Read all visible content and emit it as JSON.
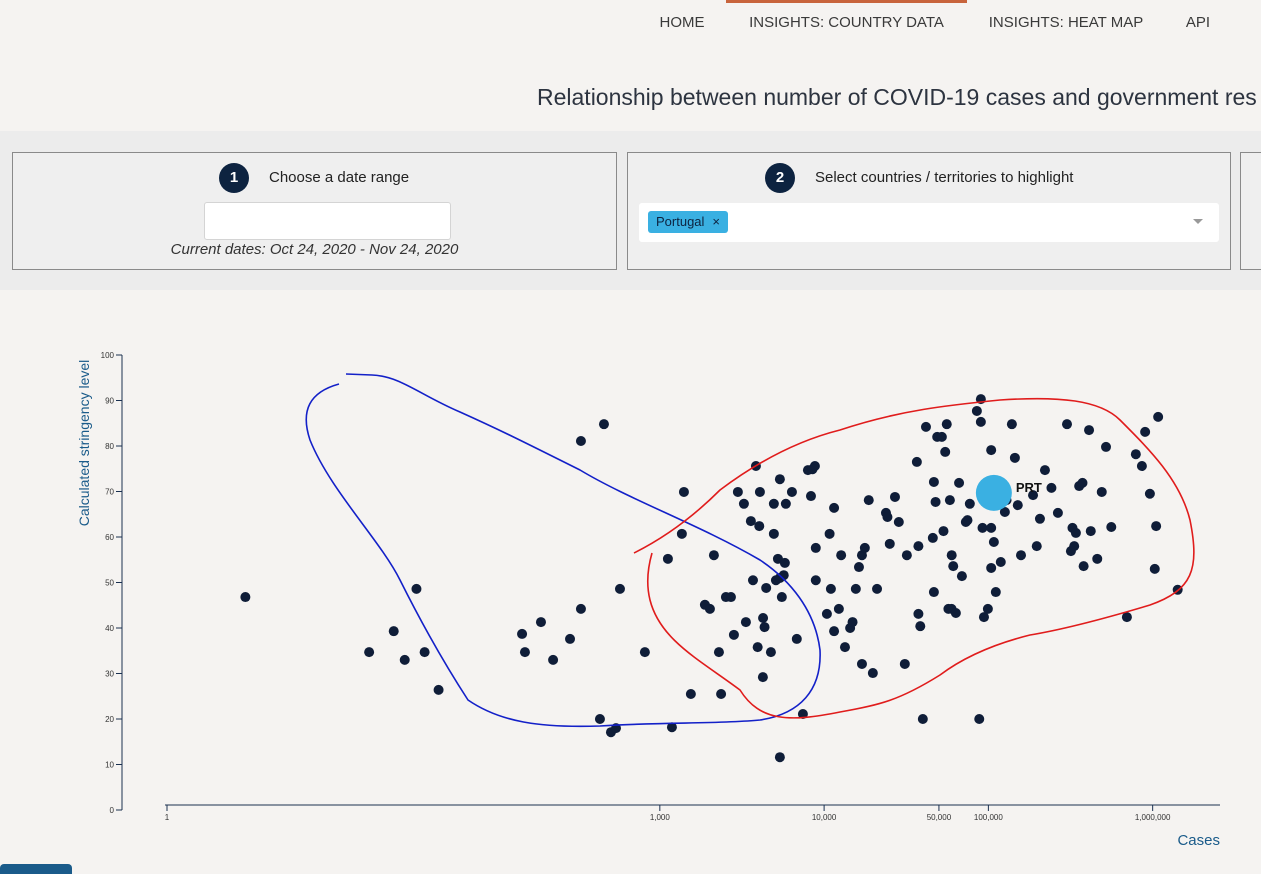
{
  "nav": {
    "items": [
      "HOME",
      "INSIGHTS: COUNTRY DATA",
      "INSIGHTS: HEAT MAP",
      "API"
    ],
    "active": 1
  },
  "header": {
    "title": "Relationship between number of COVID-19 cases and government res"
  },
  "controls": [
    {
      "step": 1,
      "label": "Choose a date range",
      "note": "Current dates: Oct 24, 2020 - Nov 24, 2020"
    },
    {
      "step": 2,
      "label": "Select countries / territories to highlight",
      "chips": [
        "Portugal"
      ]
    }
  ],
  "chart_data": {
    "type": "scatter",
    "x_label": "Cases",
    "y_label": "Calculated stringency level",
    "x": [
      3,
      17,
      24,
      28,
      33,
      37,
      45,
      145,
      151,
      189,
      224,
      284,
      331,
      331,
      432,
      457,
      504,
      541,
      572,
      811,
      1120,
      1185,
      1362,
      1402,
      1545,
      1881,
      2018,
      2134,
      2290,
      2360,
      2525,
      2710,
      2825,
      2986,
      3250,
      3342,
      3583,
      3690,
      3846,
      3940,
      4030,
      4067,
      4250,
      4240,
      4340,
      4440,
      4745,
      4945,
      4945,
      5090,
      5235,
      5380,
      5380,
      5380,
      5530,
      5680,
      5770,
      5850,
      6370,
      6820,
      7430,
      7970,
      8320,
      8500,
      8790,
      8900,
      8900,
      10400,
      10800,
      11000,
      11500,
      11500,
      12300,
      12700,
      13400,
      14400,
      14900,
      15600,
      16300,
      17000,
      17000,
      17700,
      18700,
      19800,
      21000,
      23800,
      24300,
      25100,
      27000,
      28500,
      31000,
      31900,
      36700,
      37500,
      37500,
      38500,
      39900,
      41700,
      45900,
      46600,
      46600,
      47700,
      48800,
      52100,
      53300,
      54600,
      55800,
      57100,
      59800,
      58300,
      59700,
      61100,
      63400,
      66300,
      69000,
      72900,
      74600,
      77100,
      85100,
      90000,
      90000,
      88000,
      92100,
      94000,
      99300,
      104000,
      104000,
      104000,
      108000,
      111000,
      119000,
      126000,
      129000,
      139000,
      145000,
      151000,
      158000,
      187000,
      197000,
      206000,
      221000,
      242000,
      265000,
      301000,
      318000,
      325000,
      333000,
      341000,
      357000,
      374000,
      380000,
      410000,
      420000,
      460000,
      490000,
      520000,
      560000,
      697000,
      790000,
      860000,
      900000,
      962000,
      1030000,
      1050000,
      1080000,
      1420000
    ],
    "y": [
      46.8,
      34.7,
      39.3,
      33.0,
      48.6,
      34.7,
      26.4,
      38.7,
      34.7,
      41.3,
      33.0,
      37.6,
      44.2,
      81.1,
      20.0,
      84.8,
      17.1,
      18.0,
      48.6,
      34.7,
      55.2,
      18.2,
      60.7,
      69.9,
      25.5,
      45.1,
      44.2,
      56.0,
      34.7,
      25.5,
      46.8,
      46.8,
      38.5,
      69.9,
      67.3,
      41.3,
      63.5,
      50.5,
      75.6,
      35.8,
      62.4,
      69.9,
      42.2,
      29.2,
      40.2,
      48.8,
      34.7,
      67.3,
      60.7,
      50.5,
      55.2,
      72.7,
      11.6,
      51.0,
      46.8,
      51.6,
      54.3,
      67.3,
      69.9,
      37.6,
      21.1,
      74.7,
      69.0,
      74.9,
      75.6,
      57.6,
      50.5,
      43.1,
      60.7,
      48.6,
      66.4,
      39.3,
      44.2,
      56.0,
      35.8,
      40.0,
      41.3,
      48.6,
      53.4,
      32.1,
      56.0,
      57.6,
      68.1,
      30.1,
      48.6,
      65.3,
      64.4,
      58.5,
      68.8,
      63.3,
      32.1,
      56.0,
      76.5,
      58.0,
      43.1,
      40.4,
      20.0,
      84.2,
      59.8,
      47.9,
      72.1,
      67.7,
      82.0,
      82.0,
      61.3,
      78.7,
      84.8,
      44.2,
      56.0,
      68.1,
      44.2,
      53.6,
      43.3,
      71.9,
      51.4,
      63.3,
      63.7,
      67.3,
      87.7,
      90.3,
      85.3,
      20.0,
      62.0,
      42.4,
      44.2,
      53.2,
      79.1,
      62.0,
      58.9,
      47.9,
      54.5,
      65.5,
      68.1,
      84.8,
      77.4,
      67.0,
      56.0,
      69.2,
      58.0,
      64.0,
      74.7,
      70.8,
      65.3,
      84.8,
      56.9,
      62.0,
      58.0,
      60.9,
      71.2,
      71.9,
      53.6,
      83.5,
      61.3,
      55.2,
      69.9,
      79.8,
      62.2,
      42.4,
      78.2,
      75.6,
      83.1,
      69.5,
      53.0,
      62.4,
      86.4,
      48.4
    ],
    "color": "#0f1d38",
    "xscale": "log",
    "xlim": [
      1,
      2570000
    ],
    "ylim": [
      0,
      100
    ],
    "xticks": [
      1,
      {
        "value": 1000,
        "label": "1,000"
      },
      {
        "value": 10000,
        "label": "10,000"
      },
      {
        "value": 50000,
        "label": "50,000"
      },
      {
        "value": 100000,
        "label": "100,000"
      },
      {
        "value": 1000000,
        "label": "1,000,000"
      }
    ],
    "yticks": [
      0,
      10,
      20,
      30,
      40,
      50,
      60,
      70,
      80,
      90,
      100
    ],
    "highlight": {
      "label": "PRT",
      "x": 108000,
      "y": 69.7,
      "color": "#3ab0e2"
    }
  }
}
